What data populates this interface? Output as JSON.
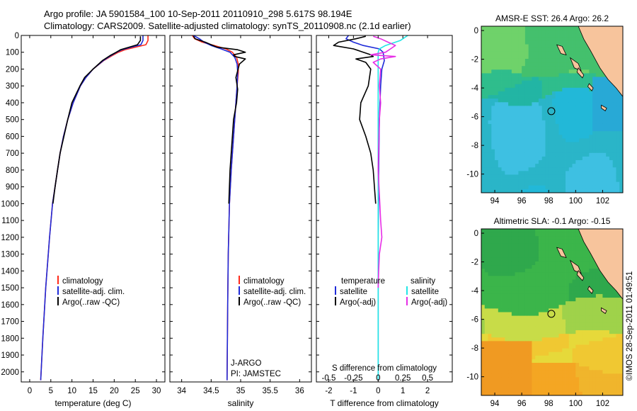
{
  "header": {
    "title": "Argo profile: JA 5901584_100 10-Sep-2011 20110910_298 5.617S 98.194E",
    "subtitle": "Climatology: CARS2009. Satellite-adjusted climatology: synTS_20110908.nc (2.1d earlier)"
  },
  "footer": {
    "credit": "©IMOS 28-Sep-2011 01:49:51"
  },
  "colors": {
    "climatology": "#ff2a1a",
    "satellite": "#1f2bd9",
    "argo": "#000000",
    "sal_satellite": "#22e6e6",
    "sal_argo": "#e62ee6",
    "land": "#f7c49c",
    "coast": "#000000"
  },
  "chart_data": [
    {
      "type": "line",
      "xlabel": "temperature (deg C)",
      "y_ticks": [
        0,
        100,
        200,
        300,
        400,
        500,
        600,
        700,
        800,
        900,
        1000,
        1100,
        1200,
        1300,
        1400,
        1500,
        1600,
        1700,
        1800,
        1900,
        2000
      ],
      "x_ticks": [
        "0",
        "5",
        "10",
        "15",
        "20",
        "25",
        "30"
      ],
      "xlim": [
        -2,
        32
      ],
      "ylim": [
        2060,
        0
      ],
      "legend": [
        "climatology",
        "satellite-adj. clim.",
        "Argo(..raw -QC)"
      ],
      "series": [
        {
          "name": "climatology",
          "y": [
            0,
            30,
            55,
            70,
            85,
            100,
            120,
            150,
            200,
            250,
            300,
            400,
            500,
            600,
            700,
            800,
            900,
            1000,
            1200,
            1500,
            1800,
            2050
          ],
          "x": [
            28.0,
            28.0,
            27.5,
            25.0,
            22.5,
            21.0,
            19.5,
            17.5,
            15.0,
            13.3,
            12.0,
            10.3,
            9.0,
            8.0,
            7.2,
            6.6,
            6.0,
            5.4,
            4.7,
            3.8,
            3.1,
            2.6
          ]
        },
        {
          "name": "satellite-adj. clim.",
          "y": [
            0,
            30,
            55,
            70,
            85,
            100,
            120,
            150,
            200,
            250,
            300,
            400,
            500,
            600,
            700,
            800,
            900,
            1000,
            1200,
            1500,
            1800,
            2050
          ],
          "x": [
            26.8,
            26.8,
            26.3,
            24.0,
            21.8,
            20.6,
            19.2,
            17.4,
            15.0,
            13.3,
            12.0,
            10.3,
            9.0,
            8.0,
            7.2,
            6.6,
            6.0,
            5.4,
            4.7,
            3.8,
            3.1,
            2.6
          ]
        },
        {
          "name": "Argo(..raw -QC)",
          "y": [
            5,
            30,
            55,
            70,
            85,
            100,
            120,
            150,
            200,
            250,
            300,
            400,
            500,
            600,
            700,
            800,
            900,
            1000
          ],
          "x": [
            26.2,
            26.2,
            25.5,
            23.5,
            21.5,
            20.5,
            19.0,
            17.2,
            15.0,
            13.0,
            11.9,
            10.0,
            9.0,
            8.1,
            7.2,
            6.6,
            6.0,
            5.5
          ]
        }
      ]
    },
    {
      "type": "line",
      "xlabel": "salinity",
      "x_ticks": [
        "34",
        "34.5",
        "35",
        "35.5",
        "36"
      ],
      "xlim": [
        33.8,
        36.2
      ],
      "ylim": [
        2060,
        0
      ],
      "legend": [
        "climatology",
        "satellite-adj. clim.",
        "Argo(..raw -QC)"
      ],
      "annotations": [
        "J-ARGO",
        "PI: JAMSTEC"
      ],
      "series": [
        {
          "name": "climatology",
          "y": [
            0,
            20,
            40,
            60,
            80,
            100,
            130,
            170,
            220,
            300,
            400,
            600,
            800,
            1000,
            1300,
            1600,
            2050
          ],
          "x": [
            34.18,
            34.22,
            34.35,
            34.55,
            34.75,
            34.86,
            34.93,
            34.96,
            34.96,
            34.94,
            34.92,
            34.88,
            34.84,
            34.81,
            34.79,
            34.78,
            34.77
          ]
        },
        {
          "name": "satellite-adj. clim.",
          "y": [
            0,
            20,
            40,
            60,
            80,
            100,
            130,
            170,
            220,
            300,
            400,
            600,
            800,
            1000,
            1300,
            1600,
            2050
          ],
          "x": [
            34.2,
            34.3,
            34.38,
            34.5,
            34.67,
            34.82,
            34.9,
            34.94,
            34.95,
            34.94,
            34.92,
            34.88,
            34.84,
            34.81,
            34.79,
            34.78,
            34.77
          ]
        },
        {
          "name": "Argo(..raw -QC)",
          "y": [
            5,
            20,
            40,
            55,
            70,
            85,
            100,
            115,
            125,
            140,
            170,
            210,
            250,
            320,
            400,
            500,
            650,
            800,
            1000
          ],
          "x": [
            34.2,
            34.23,
            34.4,
            34.5,
            34.6,
            34.95,
            35.08,
            34.88,
            34.9,
            35.08,
            34.98,
            34.95,
            34.92,
            34.95,
            34.93,
            34.88,
            34.85,
            34.82,
            34.8
          ]
        }
      ]
    },
    {
      "type": "line",
      "xlabel": "T difference from climatology",
      "xlabel_top": "S difference from climatology",
      "x_ticks": [
        "-2",
        "-1",
        "0",
        "1",
        "2"
      ],
      "x_ticks_top": [
        "-0.5",
        "-0.25",
        "0",
        "0.25",
        "0.5"
      ],
      "xlim": [
        -2.5,
        3.0
      ],
      "ylim": [
        2060,
        0
      ],
      "legend_titles": [
        "temperature",
        "salinity"
      ],
      "legend": [
        "satellite",
        "Argo(-adj)",
        "satellite",
        "Argo(-adj)"
      ],
      "series": [
        {
          "name": "temperature satellite",
          "y": [
            0,
            20,
            40,
            60,
            80,
            100,
            150,
            200,
            300,
            500,
            800,
            1200,
            1500,
            2050
          ],
          "x": [
            -1.2,
            -1.3,
            -1.0,
            -0.6,
            0.05,
            0.2,
            0.25,
            0.15,
            0.1,
            0.05,
            0.02,
            0.0,
            0.0,
            0.0
          ]
        },
        {
          "name": "temperature Argo(-adj)",
          "y": [
            5,
            20,
            40,
            60,
            80,
            100,
            115,
            125,
            140,
            160,
            200,
            300,
            400,
            500,
            600,
            700,
            800,
            900,
            1000
          ],
          "x": [
            -0.5,
            -0.9,
            -1.6,
            -1.8,
            -1.0,
            -0.6,
            -0.3,
            -0.2,
            -0.9,
            -0.5,
            -0.3,
            -0.4,
            -0.7,
            -0.75,
            -0.5,
            -0.3,
            -0.2,
            -0.15,
            -0.1
          ]
        },
        {
          "name": "salinity satellite",
          "y": [
            0,
            30,
            60,
            80,
            100,
            150,
            200,
            300,
            400,
            500,
            800,
            1200,
            1500,
            2050
          ],
          "x": [
            1.2,
            0.9,
            0.3,
            0.05,
            0.0,
            0.0,
            0.0,
            0.0,
            0.0,
            0.0,
            0.0,
            0.0,
            0.0,
            0.0
          ]
        },
        {
          "name": "salinity Argo(-adj)",
          "y": [
            5,
            20,
            40,
            60,
            80,
            100,
            115,
            125,
            140,
            160,
            200,
            300,
            400,
            500,
            800,
            1100,
            1200,
            1300,
            1400,
            1500
          ],
          "x": [
            -0.2,
            0.1,
            0.4,
            0.7,
            0.5,
            0.3,
            -0.3,
            0.7,
            0.1,
            -0.2,
            0.1,
            0.05,
            0.1,
            0.05,
            0.0,
            0.1,
            0.15,
            0.05,
            0.02,
            0.0
          ]
        }
      ]
    },
    {
      "type": "heatmap",
      "title": "AMSR-E SST: 26.4 Argo: 26.2",
      "x_ticks": [
        "94",
        "96",
        "98",
        "100",
        "102"
      ],
      "y_ticks": [
        "0",
        "-2",
        "-4",
        "-6",
        "-8",
        "-10"
      ],
      "xlim": [
        93.0,
        103.5
      ],
      "ylim": [
        -11.3,
        0.3
      ],
      "marker": {
        "lon": 98.194,
        "lat": -5.617
      }
    },
    {
      "type": "heatmap",
      "title": "Altimetric SLA: -0.1 Argo: -0.15",
      "x_ticks": [
        "94",
        "96",
        "98",
        "100",
        "102"
      ],
      "y_ticks": [
        "0",
        "-2",
        "-4",
        "-6",
        "-8",
        "-10"
      ],
      "xlim": [
        93.0,
        103.5
      ],
      "ylim": [
        -11.3,
        0.3
      ],
      "marker": {
        "lon": 98.194,
        "lat": -5.617
      }
    }
  ]
}
